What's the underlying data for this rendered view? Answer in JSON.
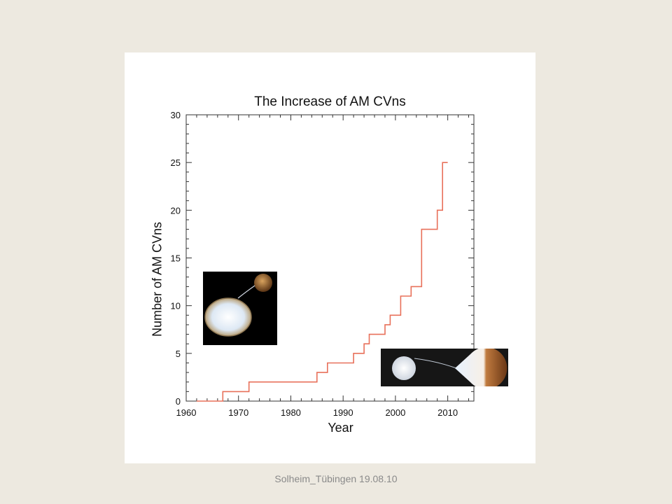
{
  "footer": "Solheim_Tübingen 19.08.10",
  "colors": {
    "background": "#ede9e0",
    "line": "#e8705a",
    "axis": "#333333"
  },
  "chart_data": {
    "type": "line",
    "step": true,
    "title": "The Increase of AM CVns",
    "xlabel": "Year",
    "ylabel": "Number of AM CVns",
    "xlim": [
      1960,
      2015
    ],
    "ylim": [
      0,
      30
    ],
    "xticks": [
      1960,
      1970,
      1980,
      1990,
      2000,
      2010
    ],
    "yticks": [
      0,
      5,
      10,
      15,
      20,
      25,
      30
    ],
    "grid": false,
    "series": [
      {
        "x": [
          1962,
          1967,
          1967,
          1972,
          1972,
          1985,
          1985,
          1987,
          1987,
          1992,
          1992,
          1994,
          1994,
          1995,
          1995,
          1998,
          1998,
          1999,
          1999,
          2001,
          2001,
          2003,
          2003,
          2005,
          2005,
          2008,
          2008,
          2009,
          2009,
          2010
        ],
        "y": [
          0,
          0,
          1,
          1,
          2,
          2,
          3,
          3,
          4,
          4,
          5,
          5,
          6,
          6,
          7,
          7,
          8,
          8,
          9,
          9,
          11,
          11,
          12,
          12,
          18,
          18,
          20,
          20,
          25,
          25
        ]
      }
    ]
  },
  "insets": [
    {
      "name": "white-dwarf-binary-illustration"
    },
    {
      "name": "accretion-stream-illustration"
    }
  ]
}
